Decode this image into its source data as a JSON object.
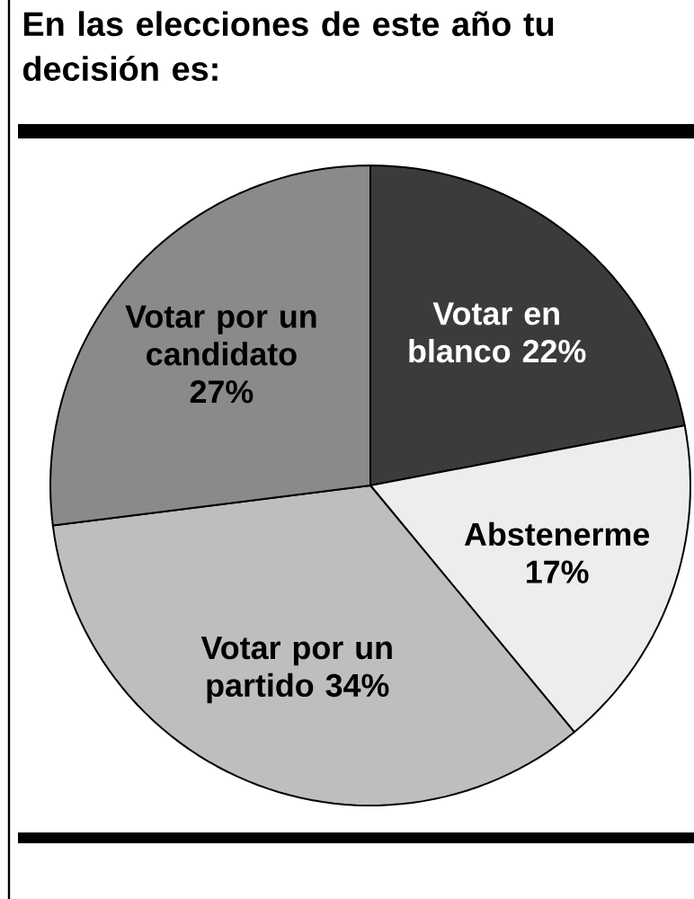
{
  "chart_data": {
    "type": "pie",
    "title": "En las elecciones de este año tu decisión es:",
    "categories": [
      "Votar en blanco",
      "Abstenerme",
      "Votar por un partido",
      "Votar por un candidato"
    ],
    "values": [
      22,
      17,
      34,
      27
    ],
    "value_labels": [
      "22%",
      "17%",
      "34%",
      "27%"
    ],
    "colors": [
      "#3b3b3b",
      "#ededed",
      "#bebebe",
      "#8a8a8a"
    ],
    "data_labels": true
  }
}
